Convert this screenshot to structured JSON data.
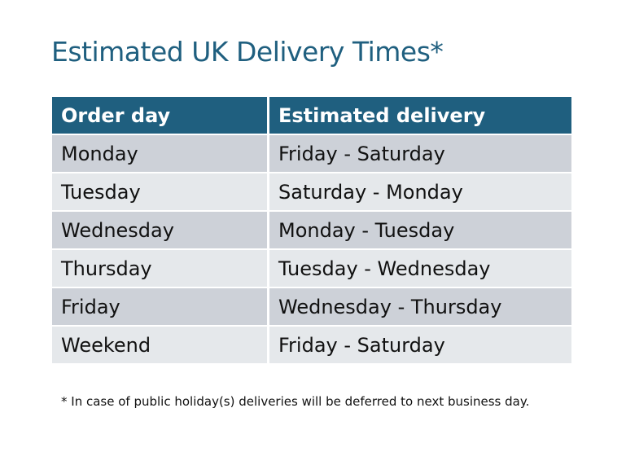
{
  "title": "Estimated UK Delivery Times*",
  "table": {
    "headers": [
      "Order day",
      "Estimated delivery"
    ],
    "rows": [
      [
        "Monday",
        "Friday - Saturday"
      ],
      [
        "Tuesday",
        "Saturday - Monday"
      ],
      [
        "Wednesday",
        "Monday - Tuesday"
      ],
      [
        "Thursday",
        "Tuesday - Wednesday"
      ],
      [
        "Friday",
        "Wednesday - Thursday"
      ],
      [
        "Weekend",
        "Friday - Saturday"
      ]
    ]
  },
  "footnote": "* In case of public holiday(s) deliveries will be deferred to next business day.",
  "colors": {
    "header_bg": "#1f5f7f",
    "row_dark": "#cdd1d8",
    "row_light": "#e5e8eb"
  }
}
